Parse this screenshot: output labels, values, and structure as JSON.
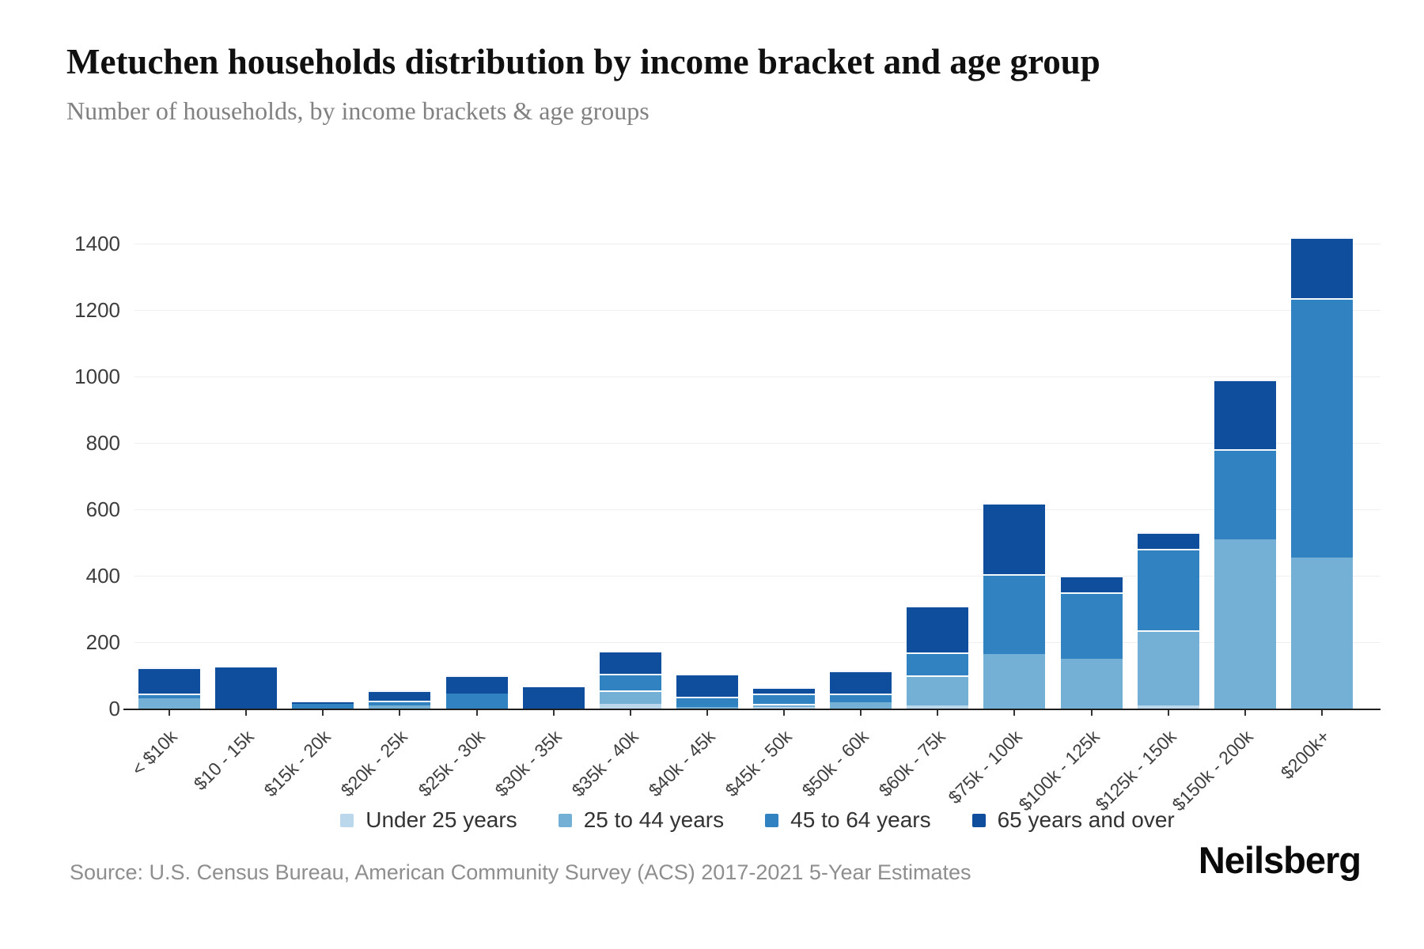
{
  "header": {
    "title": "Metuchen households distribution by income bracket and age group",
    "subtitle": "Number of households, by income brackets & age groups"
  },
  "source": {
    "text": "Source: U.S. Census Bureau, American Community Survey (ACS) 2017-2021 5-Year Estimates"
  },
  "branding": {
    "logo_text": "Neilsberg"
  },
  "chart_data": {
    "type": "bar",
    "stacked": true,
    "title": "Metuchen households distribution by income bracket and age group",
    "subtitle": "Number of households, by income brackets & age groups",
    "xlabel": "",
    "ylabel": "",
    "ylim": [
      0,
      1400
    ],
    "ytick_interval": 200,
    "ytick_labels": [
      "0",
      "200",
      "400",
      "600",
      "800",
      "1000",
      "1200",
      "1400"
    ],
    "grid": true,
    "legend_position": "bottom-center",
    "categories": [
      "< $10k",
      "$10 - 15k",
      "$15k - 20k",
      "$20k - 25k",
      "$25k - 30k",
      "$30k - 35k",
      "$35k - 40k",
      "$40k - 45k",
      "$45k - 50k",
      "$50k - 60k",
      "$60k - 75k",
      "$75k - 100k",
      "$100k - 125k",
      "$125k - 150k",
      "$150k - 200k",
      "$200k+"
    ],
    "series": [
      {
        "name": "Under 25 years",
        "color": "#bad7eb",
        "values": [
          0,
          0,
          0,
          0,
          0,
          0,
          15,
          0,
          5,
          0,
          10,
          0,
          0,
          10,
          0,
          0
        ]
      },
      {
        "name": "25 to 44 years",
        "color": "#74afd6",
        "values": [
          30,
          0,
          0,
          10,
          0,
          0,
          40,
          5,
          10,
          20,
          90,
          165,
          150,
          225,
          510,
          455
        ]
      },
      {
        "name": "45 to 64 years",
        "color": "#3182c1",
        "values": [
          15,
          0,
          15,
          15,
          45,
          0,
          50,
          30,
          30,
          25,
          70,
          240,
          200,
          245,
          270,
          780
        ]
      },
      {
        "name": "65 years and over",
        "color": "#0e4e9c",
        "values": [
          80,
          125,
          5,
          30,
          55,
          65,
          70,
          70,
          20,
          70,
          140,
          215,
          50,
          50,
          210,
          185
        ]
      }
    ],
    "totals": [
      125,
      125,
      20,
      55,
      100,
      65,
      175,
      105,
      65,
      115,
      310,
      620,
      400,
      530,
      990,
      1420
    ],
    "axis_color": "#1e1e1e",
    "gridline_color": "#efefef"
  }
}
